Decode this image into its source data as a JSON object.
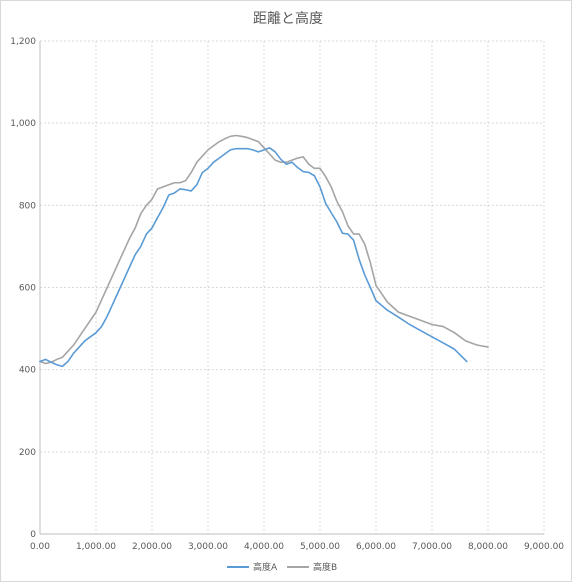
{
  "chart_data": {
    "type": "line",
    "title": "距離と高度",
    "xlabel": "",
    "ylabel": "",
    "xlim": [
      0,
      9000
    ],
    "ylim": [
      0,
      1200
    ],
    "x_ticks": [
      0,
      1000,
      2000,
      3000,
      4000,
      5000,
      6000,
      7000,
      8000,
      9000
    ],
    "x_tick_labels": [
      "0.00",
      "1,000.00",
      "2,000.00",
      "3,000.00",
      "4,000.00",
      "5,000.00",
      "6,000.00",
      "7,000.00",
      "8,000.00",
      "9,000.00"
    ],
    "y_ticks": [
      0,
      200,
      400,
      600,
      800,
      1000,
      1200
    ],
    "y_tick_labels": [
      "0",
      "200",
      "400",
      "600",
      "800",
      "1,000",
      "1,200"
    ],
    "grid": true,
    "legend_position": "bottom",
    "series": [
      {
        "name": "高度A",
        "color": "#5b9bd5",
        "x": [
          0,
          100,
          200,
          300,
          400,
          500,
          600,
          700,
          800,
          900,
          1000,
          1100,
          1200,
          1300,
          1400,
          1500,
          1600,
          1700,
          1800,
          1900,
          2000,
          2100,
          2200,
          2300,
          2400,
          2500,
          2600,
          2700,
          2800,
          2900,
          3000,
          3100,
          3200,
          3300,
          3400,
          3500,
          3600,
          3700,
          3800,
          3900,
          4000,
          4100,
          4200,
          4300,
          4400,
          4500,
          4600,
          4700,
          4800,
          4900,
          5000,
          5100,
          5200,
          5300,
          5400,
          5500,
          5600,
          5700,
          5800,
          5900,
          6000,
          6200,
          6400,
          6600,
          6800,
          7000,
          7200,
          7400,
          7620
        ],
        "values": [
          420,
          425,
          418,
          412,
          408,
          420,
          440,
          455,
          470,
          480,
          490,
          505,
          530,
          560,
          590,
          620,
          650,
          680,
          700,
          730,
          745,
          770,
          795,
          825,
          830,
          840,
          838,
          835,
          850,
          880,
          890,
          905,
          915,
          925,
          935,
          938,
          938,
          938,
          935,
          930,
          935,
          940,
          930,
          912,
          900,
          905,
          892,
          882,
          880,
          872,
          845,
          805,
          782,
          760,
          732,
          730,
          715,
          668,
          630,
          600,
          568,
          545,
          528,
          510,
          495,
          480,
          465,
          450,
          420
        ]
      },
      {
        "name": "高度B",
        "color": "#a5a5a5",
        "x": [
          0,
          100,
          200,
          300,
          400,
          500,
          600,
          700,
          800,
          900,
          1000,
          1100,
          1200,
          1300,
          1400,
          1500,
          1600,
          1700,
          1800,
          1900,
          2000,
          2100,
          2200,
          2300,
          2400,
          2500,
          2600,
          2700,
          2800,
          2900,
          3000,
          3100,
          3200,
          3300,
          3400,
          3500,
          3600,
          3700,
          3800,
          3900,
          4000,
          4100,
          4200,
          4300,
          4400,
          4500,
          4600,
          4700,
          4800,
          4900,
          5000,
          5100,
          5200,
          5300,
          5400,
          5500,
          5600,
          5700,
          5800,
          5900,
          6000,
          6200,
          6400,
          6600,
          6800,
          7000,
          7200,
          7400,
          7600,
          7800,
          8000
        ],
        "values": [
          420,
          415,
          418,
          425,
          430,
          445,
          460,
          480,
          500,
          520,
          540,
          570,
          600,
          630,
          660,
          690,
          720,
          745,
          780,
          800,
          815,
          840,
          845,
          850,
          855,
          855,
          860,
          880,
          905,
          920,
          935,
          945,
          955,
          962,
          968,
          970,
          968,
          965,
          960,
          955,
          940,
          925,
          910,
          905,
          905,
          910,
          915,
          918,
          900,
          890,
          890,
          870,
          845,
          810,
          785,
          750,
          730,
          730,
          705,
          660,
          605,
          565,
          540,
          530,
          520,
          510,
          505,
          490,
          470,
          460,
          455
        ]
      }
    ]
  }
}
